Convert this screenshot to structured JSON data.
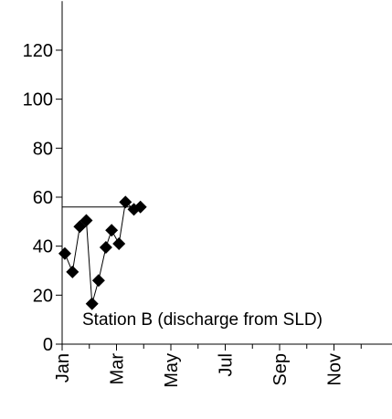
{
  "chart_data": {
    "type": "line",
    "annotation": "Station B (discharge from SLD)",
    "x": [
      0.1,
      0.38,
      0.65,
      0.89,
      1.1,
      1.34,
      1.61,
      1.82,
      2.09,
      2.33,
      2.64,
      2.88
    ],
    "series": [
      {
        "color": "#000000",
        "values": [
          37,
          29.5,
          48,
          50.5,
          16.5,
          26,
          39.5,
          46.5,
          41,
          58,
          55,
          56
        ]
      }
    ],
    "reference_line": {
      "value": 56,
      "x_end": 2.85
    },
    "xlim": [
      0,
      12
    ],
    "xticks": [
      {
        "value": 0,
        "label": "Jan"
      },
      {
        "value": 2,
        "label": "Mar"
      },
      {
        "value": 4,
        "label": "May"
      },
      {
        "value": 6,
        "label": "Jul"
      },
      {
        "value": 8,
        "label": "Sep"
      },
      {
        "value": 10,
        "label": "Nov"
      }
    ],
    "xminorticks": [
      1,
      3,
      5,
      7,
      9,
      11
    ],
    "ylim": [
      0,
      140
    ],
    "yticks": [
      0,
      20,
      40,
      60,
      80,
      100,
      120
    ]
  }
}
